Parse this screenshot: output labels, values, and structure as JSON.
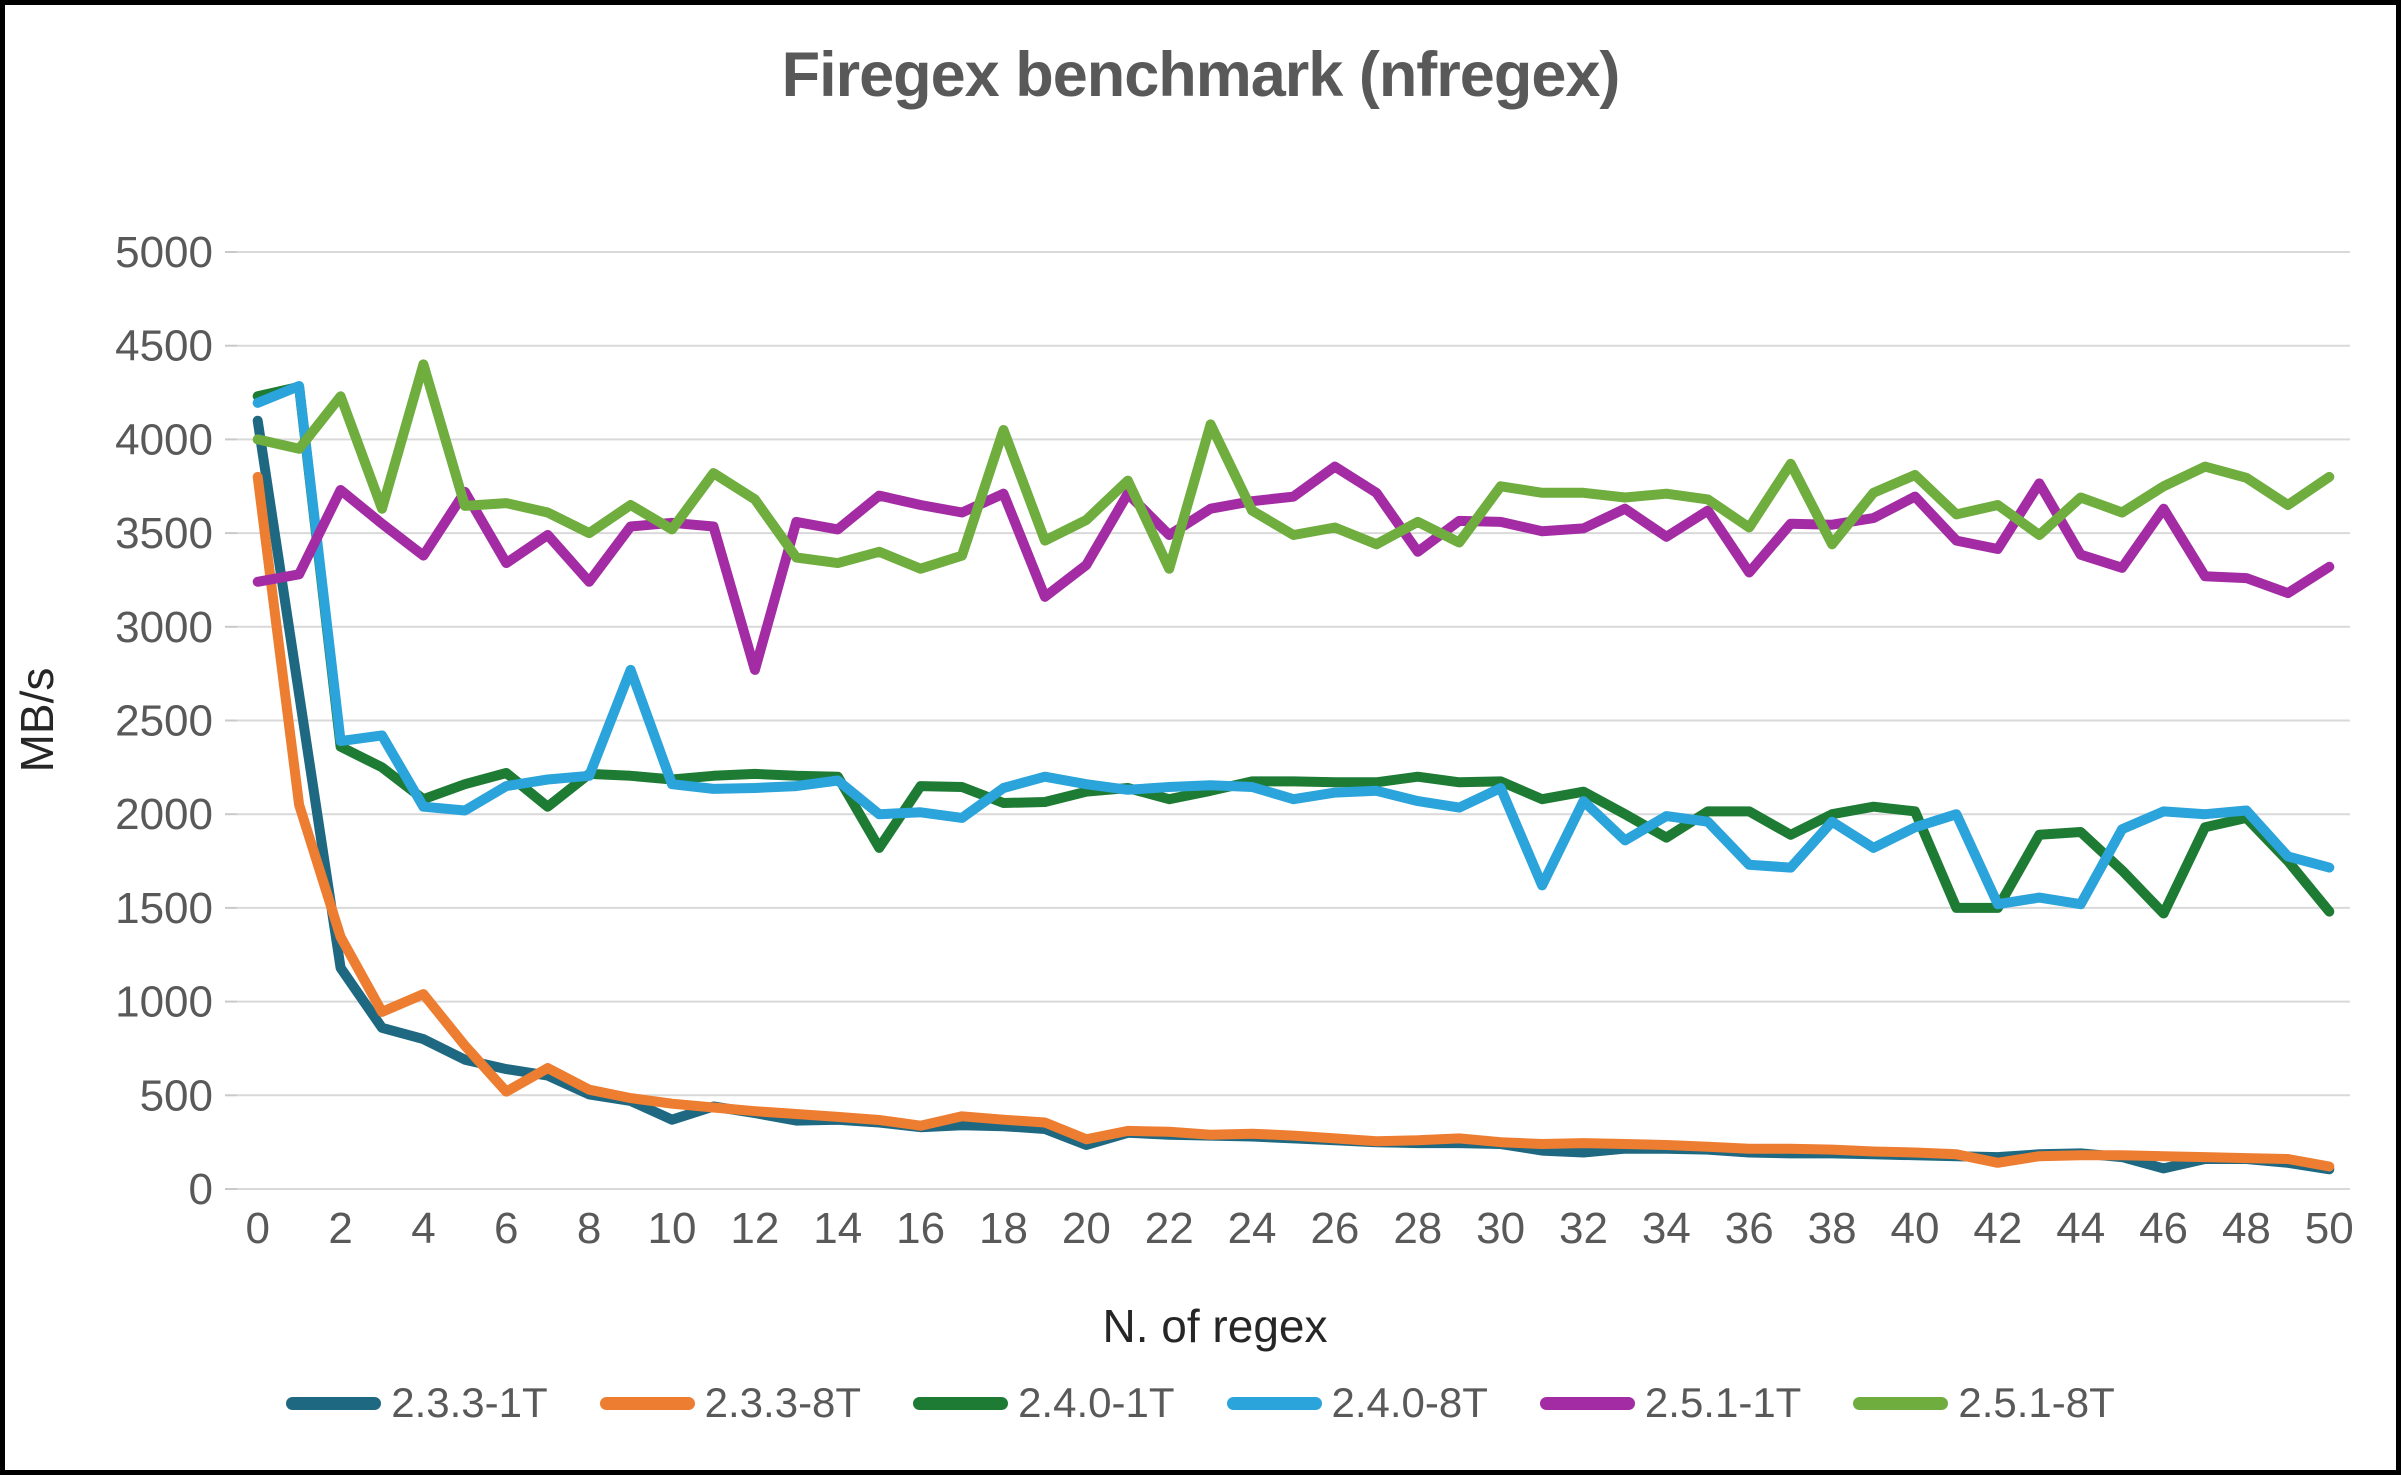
{
  "title": "Firegex benchmark (nfregex)",
  "chart_data": {
    "type": "line",
    "title": "Firegex benchmark (nfregex)",
    "xlabel": "N. of regex",
    "ylabel": "MB/s",
    "ylim": [
      0,
      5000
    ],
    "ytick_step": 500,
    "y_tick_labels": [
      "0",
      "500",
      "1000",
      "1500",
      "2000",
      "2500",
      "3000",
      "3500",
      "4000",
      "4500",
      "5000"
    ],
    "x_tick_labels": [
      "0",
      "2",
      "4",
      "6",
      "8",
      "10",
      "12",
      "14",
      "16",
      "18",
      "20",
      "22",
      "24",
      "26",
      "28",
      "30",
      "32",
      "34",
      "36",
      "38",
      "40",
      "42",
      "44",
      "46",
      "48",
      "50"
    ],
    "x": [
      0,
      1,
      2,
      3,
      4,
      5,
      6,
      7,
      8,
      9,
      10,
      11,
      12,
      13,
      14,
      15,
      16,
      17,
      18,
      19,
      20,
      21,
      22,
      23,
      24,
      25,
      26,
      27,
      28,
      29,
      30,
      31,
      32,
      33,
      34,
      35,
      36,
      37,
      38,
      39,
      40,
      41,
      42,
      43,
      44,
      45,
      46,
      47,
      48,
      49,
      50
    ],
    "grid": true,
    "legend_position": "bottom",
    "series": [
      {
        "name": "2.3.3-1T",
        "color": "#1F6881",
        "values": [
          4100,
          2640,
          1180,
          860,
          800,
          690,
          640,
          605,
          505,
          470,
          370,
          440,
          405,
          365,
          370,
          355,
          330,
          340,
          335,
          320,
          235,
          300,
          290,
          285,
          280,
          270,
          260,
          250,
          245,
          245,
          240,
          205,
          195,
          215,
          215,
          210,
          195,
          190,
          190,
          185,
          180,
          175,
          170,
          185,
          190,
          170,
          110,
          160,
          160,
          140,
          105
        ]
      },
      {
        "name": "2.3.3-8T",
        "color": "#ED7D31",
        "values": [
          3800,
          2050,
          1345,
          945,
          1040,
          765,
          520,
          645,
          530,
          485,
          455,
          435,
          415,
          400,
          385,
          368,
          338,
          388,
          370,
          355,
          265,
          310,
          305,
          290,
          295,
          285,
          270,
          255,
          260,
          270,
          250,
          240,
          245,
          240,
          235,
          225,
          215,
          215,
          210,
          200,
          195,
          185,
          140,
          175,
          180,
          180,
          175,
          170,
          165,
          160,
          120
        ]
      },
      {
        "name": "2.4.0-1T",
        "color": "#1E7B34",
        "values": [
          4230,
          4280,
          2360,
          2250,
          2080,
          2160,
          2220,
          2040,
          2215,
          2205,
          2185,
          2205,
          2215,
          2205,
          2200,
          1820,
          2150,
          2145,
          2060,
          2065,
          2120,
          2140,
          2080,
          2125,
          2175,
          2175,
          2170,
          2170,
          2200,
          2170,
          2175,
          2080,
          2120,
          2000,
          1875,
          2015,
          2015,
          1890,
          2000,
          2040,
          2015,
          1500,
          1500,
          1890,
          1905,
          1700,
          1470,
          1930,
          1980,
          1750,
          1480
        ]
      },
      {
        "name": "2.4.0-8T",
        "color": "#2BA3DB",
        "values": [
          4195,
          4285,
          2390,
          2420,
          2040,
          2020,
          2150,
          2185,
          2205,
          2770,
          2160,
          2135,
          2140,
          2150,
          2180,
          2000,
          2010,
          1980,
          2140,
          2200,
          2160,
          2130,
          2145,
          2155,
          2145,
          2080,
          2115,
          2125,
          2070,
          2035,
          2140,
          1620,
          2070,
          1860,
          1990,
          1960,
          1730,
          1715,
          1960,
          1820,
          1930,
          2000,
          1520,
          1555,
          1520,
          1920,
          2015,
          2000,
          2020,
          1775,
          1715
        ]
      },
      {
        "name": "2.5.1-1T",
        "color": "#A32CA4",
        "values": [
          3240,
          3280,
          3730,
          3550,
          3380,
          3720,
          3340,
          3490,
          3240,
          3535,
          3555,
          3535,
          2770,
          3560,
          3520,
          3700,
          3650,
          3610,
          3710,
          3160,
          3330,
          3710,
          3490,
          3630,
          3670,
          3695,
          3855,
          3715,
          3400,
          3565,
          3560,
          3510,
          3525,
          3630,
          3480,
          3620,
          3290,
          3550,
          3545,
          3580,
          3695,
          3460,
          3415,
          3765,
          3385,
          3315,
          3630,
          3270,
          3260,
          3180,
          3320
        ]
      },
      {
        "name": "2.5.1-8T",
        "color": "#6FAD3F",
        "values": [
          4000,
          3950,
          4230,
          3630,
          4400,
          3645,
          3660,
          3610,
          3500,
          3650,
          3520,
          3820,
          3680,
          3370,
          3340,
          3400,
          3310,
          3380,
          4050,
          3460,
          3570,
          3780,
          3310,
          4080,
          3620,
          3490,
          3530,
          3440,
          3560,
          3450,
          3750,
          3715,
          3715,
          3690,
          3710,
          3680,
          3530,
          3870,
          3440,
          3715,
          3810,
          3600,
          3650,
          3490,
          3690,
          3610,
          3750,
          3855,
          3795,
          3650,
          3800
        ]
      }
    ]
  }
}
